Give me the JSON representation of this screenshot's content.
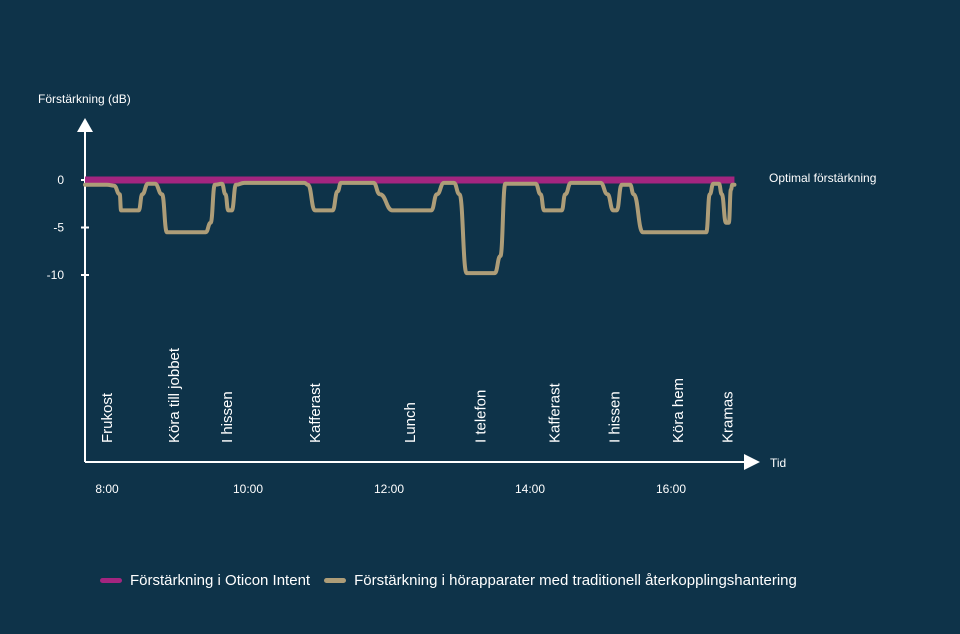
{
  "colors": {
    "background": "#0e3349",
    "intent": "#a3257f",
    "traditional": "#ad9d78",
    "axis": "#ffffff"
  },
  "chart_data": {
    "type": "line",
    "ylabel": "Förstärkning (dB)",
    "xlabel": "Tid",
    "yticks": [
      0,
      -5,
      -10
    ],
    "ytick_labels": [
      "0",
      "-5",
      "-10"
    ],
    "ylim": [
      -30,
      7
    ],
    "xticks": [
      8,
      10,
      12,
      14,
      16
    ],
    "xtick_labels": [
      "8:00",
      "10:00",
      "12:00",
      "14:00",
      "16:00"
    ],
    "xlim": [
      7.75,
      17.2
    ],
    "annotation": "Optimal förstärkning",
    "activities": [
      {
        "label": "Frukost",
        "x": 8.0
      },
      {
        "label": "Köra till jobbet",
        "x": 8.95
      },
      {
        "label": "I hissen",
        "x": 9.7
      },
      {
        "label": "Kafferast",
        "x": 10.95
      },
      {
        "label": "Lunch",
        "x": 12.3
      },
      {
        "label": "I telefon",
        "x": 13.3
      },
      {
        "label": "Kafferast",
        "x": 14.35
      },
      {
        "label": "I hissen",
        "x": 15.2
      },
      {
        "label": "Köra hem",
        "x": 16.1
      },
      {
        "label": "Kramas",
        "x": 16.8
      }
    ],
    "series": [
      {
        "name": "Förstärkning i Oticon Intent",
        "x": [
          8.0,
          16.9
        ],
        "y": [
          0,
          0
        ]
      },
      {
        "name": "Förstärkning i hörapparater med traditionell återkopplingshantering",
        "x": [
          8.0,
          8.1,
          8.18,
          8.2,
          8.45,
          8.5,
          8.58,
          8.68,
          8.78,
          8.85,
          9.4,
          9.47,
          9.53,
          9.63,
          9.68,
          9.72,
          9.77,
          9.83,
          9.95,
          10.8,
          10.85,
          10.95,
          11.2,
          11.27,
          11.32,
          11.42,
          11.78,
          11.87,
          12.05,
          12.6,
          12.68,
          12.78,
          12.92,
          13.0,
          13.1,
          13.5,
          13.58,
          13.65,
          13.78,
          14.08,
          14.15,
          14.2,
          14.45,
          14.5,
          14.58,
          14.78,
          15.0,
          15.1,
          15.18,
          15.23,
          15.3,
          15.42,
          15.47,
          15.6,
          15.65,
          16.5,
          16.55,
          16.6,
          16.68,
          16.72,
          16.78,
          16.82,
          16.85,
          16.87,
          16.9
        ],
        "y": [
          -0.5,
          -0.6,
          -1.5,
          -3.2,
          -3.2,
          -1.5,
          -0.4,
          -0.4,
          -1.5,
          -5.5,
          -5.5,
          -4.5,
          -0.5,
          -0.4,
          -1.5,
          -3.2,
          -3.2,
          -0.5,
          -0.3,
          -0.3,
          -0.5,
          -3.2,
          -3.2,
          -1.2,
          -0.3,
          -0.3,
          -0.3,
          -1.5,
          -3.2,
          -3.2,
          -1.5,
          -0.3,
          -0.3,
          -1.5,
          -9.8,
          -9.8,
          -8.0,
          -0.4,
          -0.4,
          -0.4,
          -1.5,
          -3.2,
          -3.2,
          -1.5,
          -0.3,
          -0.3,
          -0.3,
          -1.5,
          -3.2,
          -3.2,
          -0.5,
          -0.5,
          -1.5,
          -5.5,
          -5.5,
          -5.5,
          -1.5,
          -0.4,
          -0.4,
          -1.5,
          -4.5,
          -4.5,
          -1.0,
          -0.5,
          -0.5
        ]
      }
    ]
  },
  "legend": {
    "items": [
      {
        "label": "Förstärkning i Oticon Intent",
        "color": "#a3257f"
      },
      {
        "label": "Förstärkning i hörapparater med traditionell återkopplingshantering",
        "color": "#ad9d78"
      }
    ]
  }
}
